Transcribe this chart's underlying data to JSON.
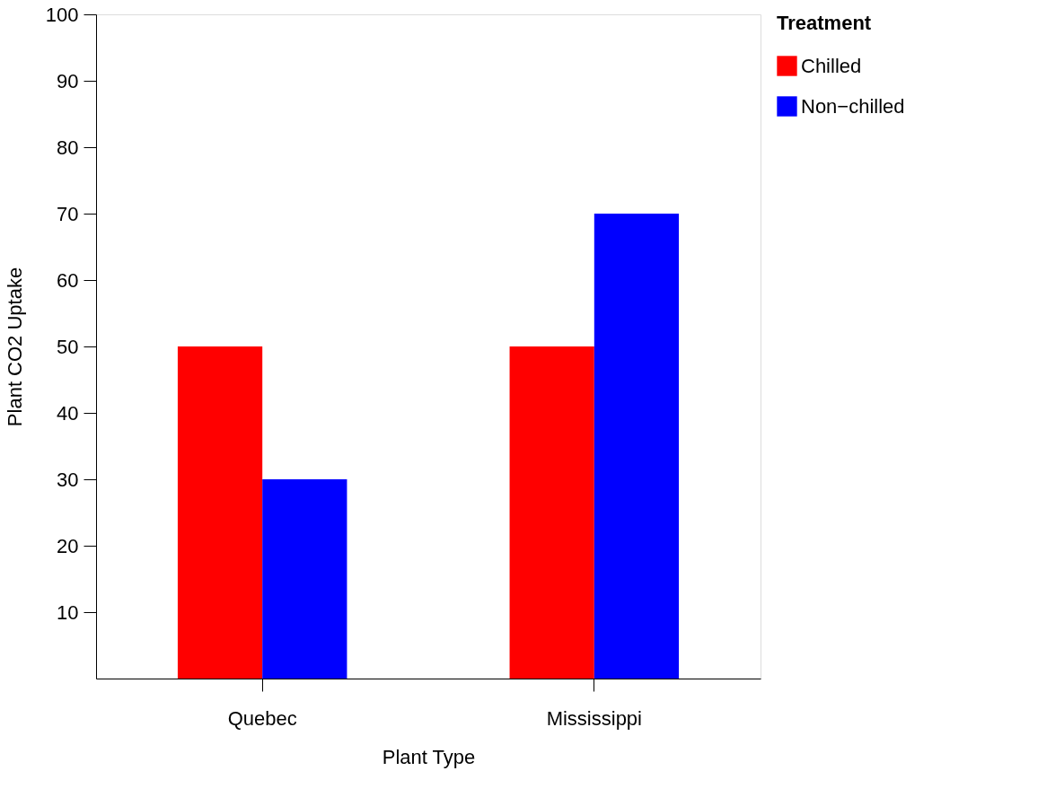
{
  "chart_data": {
    "type": "bar",
    "xlabel": "Plant Type",
    "ylabel": "Plant CO2 Uptake",
    "legend_title": "Treatment",
    "categories": [
      "Quebec",
      "Mississippi"
    ],
    "series": [
      {
        "name": "Chilled",
        "color": "#ff0000",
        "values": [
          50,
          50
        ]
      },
      {
        "name": "Non−chilled",
        "color": "#0000ff",
        "values": [
          30,
          70
        ]
      }
    ],
    "ylim": [
      0,
      100
    ],
    "yticks": [
      10,
      20,
      30,
      40,
      50,
      60,
      70,
      80,
      90,
      100
    ],
    "grid": false,
    "legend": "top right"
  }
}
